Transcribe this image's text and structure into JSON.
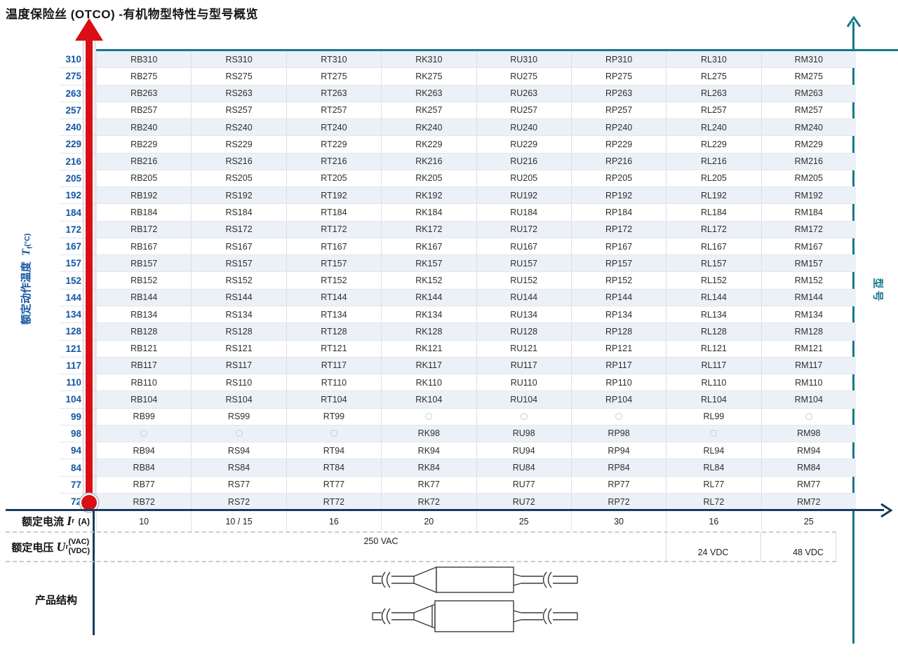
{
  "title": "温度保险丝 (OTCO) -有机物型特性与型号概览",
  "ui": {
    "y_axis": {
      "label": "额定动作温度",
      "symbol": "T",
      "symbol_sub": "f",
      "unit": "(°C)"
    },
    "right_axis_label": "型号",
    "current": {
      "label": "额定电流",
      "symbol": "I",
      "symbol_sub": "r",
      "unit": "(A)"
    },
    "voltage": {
      "label": "额定电压",
      "symbol": "U",
      "symbol_sub": "r",
      "unit_top": "(VAC)",
      "unit_bottom": "(VDC)"
    },
    "structure_label": "产品结构"
  },
  "colors": {
    "teal": "#16798a",
    "navy": "#1a3a5f",
    "blue": "#1356a3",
    "red": "#d90f15",
    "row_alt": "#ecf1f8"
  },
  "chart_data": {
    "type": "table",
    "title": "温度保险丝 (OTCO) -有机物型特性与型号概览",
    "y_axis_label": "额定动作温度 Tf (°C)",
    "right_axis_label": "型号",
    "na_marker": "○",
    "columns": [
      "RB",
      "RS",
      "RT",
      "RK",
      "RU",
      "RP",
      "RL",
      "RM"
    ],
    "temperatures": [
      310,
      275,
      263,
      257,
      240,
      229,
      216,
      205,
      192,
      184,
      172,
      167,
      157,
      152,
      144,
      134,
      128,
      121,
      117,
      110,
      104,
      99,
      98,
      94,
      84,
      77,
      72
    ],
    "rows": [
      {
        "temp": "310",
        "cells": [
          "RB310",
          "RS310",
          "RT310",
          "RK310",
          "RU310",
          "RP310",
          "RL310",
          "RM310"
        ]
      },
      {
        "temp": "275",
        "cells": [
          "RB275",
          "RS275",
          "RT275",
          "RK275",
          "RU275",
          "RP275",
          "RL275",
          "RM275"
        ]
      },
      {
        "temp": "263",
        "cells": [
          "RB263",
          "RS263",
          "RT263",
          "RK263",
          "RU263",
          "RP263",
          "RL263",
          "RM263"
        ]
      },
      {
        "temp": "257",
        "cells": [
          "RB257",
          "RS257",
          "RT257",
          "RK257",
          "RU257",
          "RP257",
          "RL257",
          "RM257"
        ]
      },
      {
        "temp": "240",
        "cells": [
          "RB240",
          "RS240",
          "RT240",
          "RK240",
          "RU240",
          "RP240",
          "RL240",
          "RM240"
        ]
      },
      {
        "temp": "229",
        "cells": [
          "RB229",
          "RS229",
          "RT229",
          "RK229",
          "RU229",
          "RP229",
          "RL229",
          "RM229"
        ]
      },
      {
        "temp": "216",
        "cells": [
          "RB216",
          "RS216",
          "RT216",
          "RK216",
          "RU216",
          "RP216",
          "RL216",
          "RM216"
        ]
      },
      {
        "temp": "205",
        "cells": [
          "RB205",
          "RS205",
          "RT205",
          "RK205",
          "RU205",
          "RP205",
          "RL205",
          "RM205"
        ]
      },
      {
        "temp": "192",
        "cells": [
          "RB192",
          "RS192",
          "RT192",
          "RK192",
          "RU192",
          "RP192",
          "RL192",
          "RM192"
        ]
      },
      {
        "temp": "184",
        "cells": [
          "RB184",
          "RS184",
          "RT184",
          "RK184",
          "RU184",
          "RP184",
          "RL184",
          "RM184"
        ]
      },
      {
        "temp": "172",
        "cells": [
          "RB172",
          "RS172",
          "RT172",
          "RK172",
          "RU172",
          "RP172",
          "RL172",
          "RM172"
        ]
      },
      {
        "temp": "167",
        "cells": [
          "RB167",
          "RS167",
          "RT167",
          "RK167",
          "RU167",
          "RP167",
          "RL167",
          "RM167"
        ]
      },
      {
        "temp": "157",
        "cells": [
          "RB157",
          "RS157",
          "RT157",
          "RK157",
          "RU157",
          "RP157",
          "RL157",
          "RM157"
        ]
      },
      {
        "temp": "152",
        "cells": [
          "RB152",
          "RS152",
          "RT152",
          "RK152",
          "RU152",
          "RP152",
          "RL152",
          "RM152"
        ]
      },
      {
        "temp": "144",
        "cells": [
          "RB144",
          "RS144",
          "RT144",
          "RK144",
          "RU144",
          "RP144",
          "RL144",
          "RM144"
        ]
      },
      {
        "temp": "134",
        "cells": [
          "RB134",
          "RS134",
          "RT134",
          "RK134",
          "RU134",
          "RP134",
          "RL134",
          "RM134"
        ]
      },
      {
        "temp": "128",
        "cells": [
          "RB128",
          "RS128",
          "RT128",
          "RK128",
          "RU128",
          "RP128",
          "RL128",
          "RM128"
        ]
      },
      {
        "temp": "121",
        "cells": [
          "RB121",
          "RS121",
          "RT121",
          "RK121",
          "RU121",
          "RP121",
          "RL121",
          "RM121"
        ]
      },
      {
        "temp": "117",
        "cells": [
          "RB117",
          "RS117",
          "RT117",
          "RK117",
          "RU117",
          "RP117",
          "RL117",
          "RM117"
        ]
      },
      {
        "temp": "110",
        "cells": [
          "RB110",
          "RS110",
          "RT110",
          "RK110",
          "RU110",
          "RP110",
          "RL110",
          "RM110"
        ]
      },
      {
        "temp": "104",
        "cells": [
          "RB104",
          "RS104",
          "RT104",
          "RK104",
          "RU104",
          "RP104",
          "RL104",
          "RM104"
        ]
      },
      {
        "temp": "99",
        "cells": [
          "RB99",
          "RS99",
          "RT99",
          "○",
          "○",
          "○",
          "RL99",
          "○"
        ]
      },
      {
        "temp": "98",
        "cells": [
          "○",
          "○",
          "○",
          "RK98",
          "RU98",
          "RP98",
          "○",
          "RM98"
        ]
      },
      {
        "temp": "94",
        "cells": [
          "RB94",
          "RS94",
          "RT94",
          "RK94",
          "RU94",
          "RP94",
          "RL94",
          "RM94"
        ]
      },
      {
        "temp": "84",
        "cells": [
          "RB84",
          "RS84",
          "RT84",
          "RK84",
          "RU84",
          "RP84",
          "RL84",
          "RM84"
        ]
      },
      {
        "temp": "77",
        "cells": [
          "RB77",
          "RS77",
          "RT77",
          "RK77",
          "RU77",
          "RP77",
          "RL77",
          "RM77"
        ]
      },
      {
        "temp": "72",
        "cells": [
          "RB72",
          "RS72",
          "RT72",
          "RK72",
          "RU72",
          "RP72",
          "RL72",
          "RM72"
        ]
      }
    ],
    "rated_current_A": [
      "10",
      "10 / 15",
      "16",
      "20",
      "25",
      "30",
      "16",
      "25"
    ],
    "rated_voltage": {
      "vac": "250 VAC",
      "rl_vdc": "24 VDC",
      "rm_vdc": "48 VDC"
    }
  }
}
